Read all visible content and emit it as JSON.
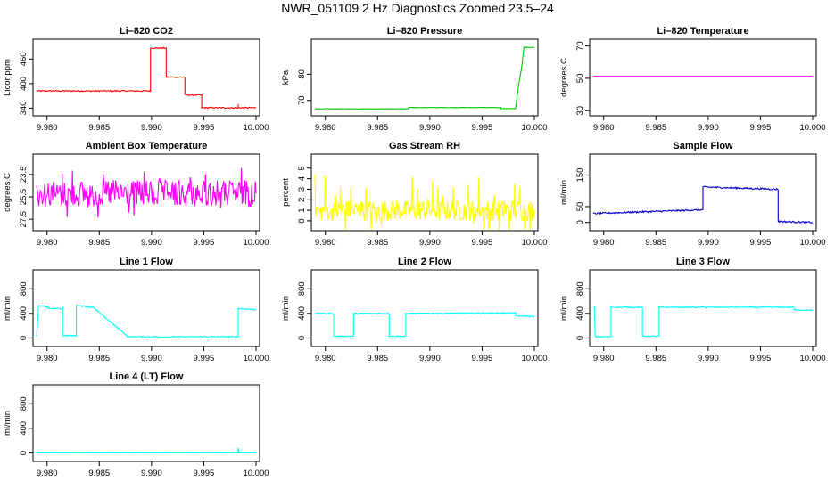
{
  "title": "NWR_051109  2 Hz Diagnostics Zoomed 23.5–24",
  "chart_data": [
    {
      "type": "line",
      "title": "Li–820 CO2",
      "ylabel": "Licor ppm",
      "color": "#ff0000",
      "xlim": [
        9.979,
        10.0
      ],
      "ylim": [
        330,
        500
      ],
      "xticks": [
        "9.980",
        "9.985",
        "9.990",
        "9.995",
        "10.000"
      ],
      "yticks": [
        [
          340,
          "340"
        ],
        [
          400,
          "400"
        ],
        [
          460,
          "460"
        ]
      ],
      "x": [
        9.979,
        9.9899,
        9.9899,
        9.9914,
        9.9914,
        9.9932,
        9.9932,
        9.9948,
        9.9948,
        9.9983,
        9.9983,
        9.9983,
        10.0
      ],
      "y": [
        382,
        382,
        487,
        487,
        416,
        416,
        372,
        372,
        341,
        341,
        350,
        341,
        341
      ],
      "noise": 1.5,
      "step": true
    },
    {
      "type": "line",
      "title": "Li–820 Pressure",
      "ylabel": "kPa",
      "color": "#00cc00",
      "xlim": [
        9.979,
        10.0
      ],
      "ylim": [
        65.5,
        92
      ],
      "xticks": [
        "9.980",
        "9.985",
        "9.990",
        "9.995",
        "10.000"
      ],
      "yticks": [
        [
          70,
          "70"
        ],
        [
          80,
          "80"
        ]
      ],
      "x": [
        9.979,
        9.988,
        9.988,
        9.9968,
        9.9968,
        9.9982,
        9.9985,
        9.9988,
        9.999,
        10.0
      ],
      "y": [
        66.8,
        66.8,
        67.3,
        67.3,
        66.9,
        66.9,
        76,
        83,
        90.2,
        90.2
      ],
      "noise": 0.1,
      "step": false
    },
    {
      "type": "line",
      "title": "Li–820 Temperature",
      "ylabel": "degrees C",
      "color": "#ff00ff",
      "xlim": [
        9.979,
        10.0
      ],
      "ylim": [
        29,
        72
      ],
      "xticks": [
        "9.980",
        "9.985",
        "9.990",
        "9.995",
        "10.000"
      ],
      "yticks": [
        [
          30,
          "30"
        ],
        [
          50,
          "50"
        ],
        [
          70,
          "70"
        ]
      ],
      "x": [
        9.979,
        10.0
      ],
      "y": [
        51.2,
        51.2
      ],
      "noise": 0,
      "step": false
    },
    {
      "type": "line",
      "title": "Ambient Box Temperature",
      "ylabel": "degrees C",
      "color": "#ff00ff",
      "xlim": [
        9.979,
        10.0
      ],
      "ylim": [
        22.0,
        28.2
      ],
      "ylim_reversed": true,
      "xticks": [
        "9.980",
        "9.985",
        "9.990",
        "9.995",
        "10.000"
      ],
      "yticks": [
        [
          27.5,
          "27.5"
        ],
        [
          25.5,
          "25.5"
        ],
        [
          23.5,
          "23.5"
        ]
      ],
      "x": [
        9.979,
        10.0
      ],
      "y": [
        25.2,
        25.2
      ],
      "noise": 1.2,
      "step": false
    },
    {
      "type": "line",
      "title": "Gas Stream RH",
      "ylabel": "percent",
      "color": "#ffff00",
      "xlim": [
        9.979,
        10.0
      ],
      "ylim": [
        -0.6,
        6
      ],
      "xticks": [
        "9.980",
        "9.985",
        "9.990",
        "9.995",
        "10.000"
      ],
      "yticks": [
        [
          0,
          "0"
        ],
        [
          1,
          "1"
        ],
        [
          2,
          "2"
        ],
        [
          3,
          "3"
        ],
        [
          4,
          "4"
        ],
        [
          5,
          "5"
        ]
      ],
      "x": [
        9.979,
        10.0
      ],
      "y": [
        1.0,
        1.0
      ],
      "noise": 1.0,
      "step": false
    },
    {
      "type": "line",
      "title": "Sample Flow",
      "ylabel": "ml/min",
      "color": "#0000cc",
      "xlim": [
        9.979,
        10.0
      ],
      "ylim": [
        -15,
        205
      ],
      "xticks": [
        "9.980",
        "9.985",
        "9.990",
        "9.995",
        "10.000"
      ],
      "yticks": [
        [
          0,
          "0"
        ],
        [
          50,
          "50"
        ],
        [
          150,
          "150"
        ]
      ],
      "x": [
        9.979,
        9.9895,
        9.9895,
        9.9967,
        9.9967,
        10.0
      ],
      "y": [
        28,
        40,
        112,
        105,
        3,
        0
      ],
      "noise": 2.5,
      "step": false
    },
    {
      "type": "line",
      "title": "Line 1 Flow",
      "ylabel": "ml/min",
      "color": "#00ffff",
      "xlim": [
        9.979,
        10.0
      ],
      "ylim": [
        -80,
        1050
      ],
      "xticks": [
        "9.980",
        "9.985",
        "9.990",
        "9.995",
        "10.000"
      ],
      "yticks": [
        [
          0,
          "0"
        ],
        [
          400,
          "400"
        ],
        [
          800,
          "800"
        ]
      ],
      "x": [
        9.979,
        9.9792,
        9.9801,
        9.9801,
        9.9815,
        9.9815,
        9.9828,
        9.9828,
        9.9844,
        9.9844,
        9.9877,
        9.9877,
        9.9983,
        9.9983,
        10.0
      ],
      "y": [
        20,
        520,
        510,
        480,
        480,
        40,
        40,
        530,
        500,
        500,
        30,
        20,
        20,
        480,
        460
      ],
      "noise": 10,
      "step": false
    },
    {
      "type": "line",
      "title": "Line 2 Flow",
      "ylabel": "ml/min",
      "color": "#00ffff",
      "xlim": [
        9.979,
        10.0
      ],
      "ylim": [
        -80,
        1050
      ],
      "xticks": [
        "9.980",
        "9.985",
        "9.990",
        "9.995",
        "10.000"
      ],
      "yticks": [
        [
          0,
          "0"
        ],
        [
          400,
          "400"
        ],
        [
          800,
          "800"
        ]
      ],
      "x": [
        9.979,
        9.9808,
        9.9808,
        9.9827,
        9.9827,
        9.9861,
        9.9861,
        9.9877,
        9.9877,
        9.9982,
        9.9982,
        10.0
      ],
      "y": [
        400,
        400,
        30,
        30,
        400,
        400,
        30,
        30,
        400,
        410,
        360,
        350
      ],
      "noise": 8,
      "step": false
    },
    {
      "type": "line",
      "title": "Line 3 Flow",
      "ylabel": "ml/min",
      "color": "#00ffff",
      "xlim": [
        9.979,
        10.0
      ],
      "ylim": [
        -80,
        1050
      ],
      "xticks": [
        "9.980",
        "9.985",
        "9.990",
        "9.995",
        "10.000"
      ],
      "yticks": [
        [
          0,
          "0"
        ],
        [
          400,
          "400"
        ],
        [
          800,
          "800"
        ]
      ],
      "x": [
        9.979,
        9.9791,
        9.9792,
        9.9807,
        9.9807,
        9.9837,
        9.9837,
        9.9853,
        9.9853,
        9.9982,
        9.9982,
        10.0
      ],
      "y": [
        500,
        500,
        20,
        20,
        500,
        500,
        30,
        30,
        500,
        500,
        460,
        450
      ],
      "noise": 8,
      "step": false
    },
    {
      "type": "line",
      "title": "Line 4 (LT) Flow",
      "ylabel": "ml/min",
      "color": "#00ffff",
      "xlim": [
        9.979,
        10.0
      ],
      "ylim": [
        -80,
        1050
      ],
      "xticks": [
        "9.980",
        "9.985",
        "9.990",
        "9.995",
        "10.000"
      ],
      "yticks": [
        [
          0,
          "0"
        ],
        [
          400,
          "400"
        ],
        [
          800,
          "800"
        ]
      ],
      "x": [
        9.979,
        9.9983,
        9.9983,
        9.9984,
        10.0
      ],
      "y": [
        0,
        0,
        80,
        0,
        0
      ],
      "noise": 1,
      "step": false
    }
  ]
}
